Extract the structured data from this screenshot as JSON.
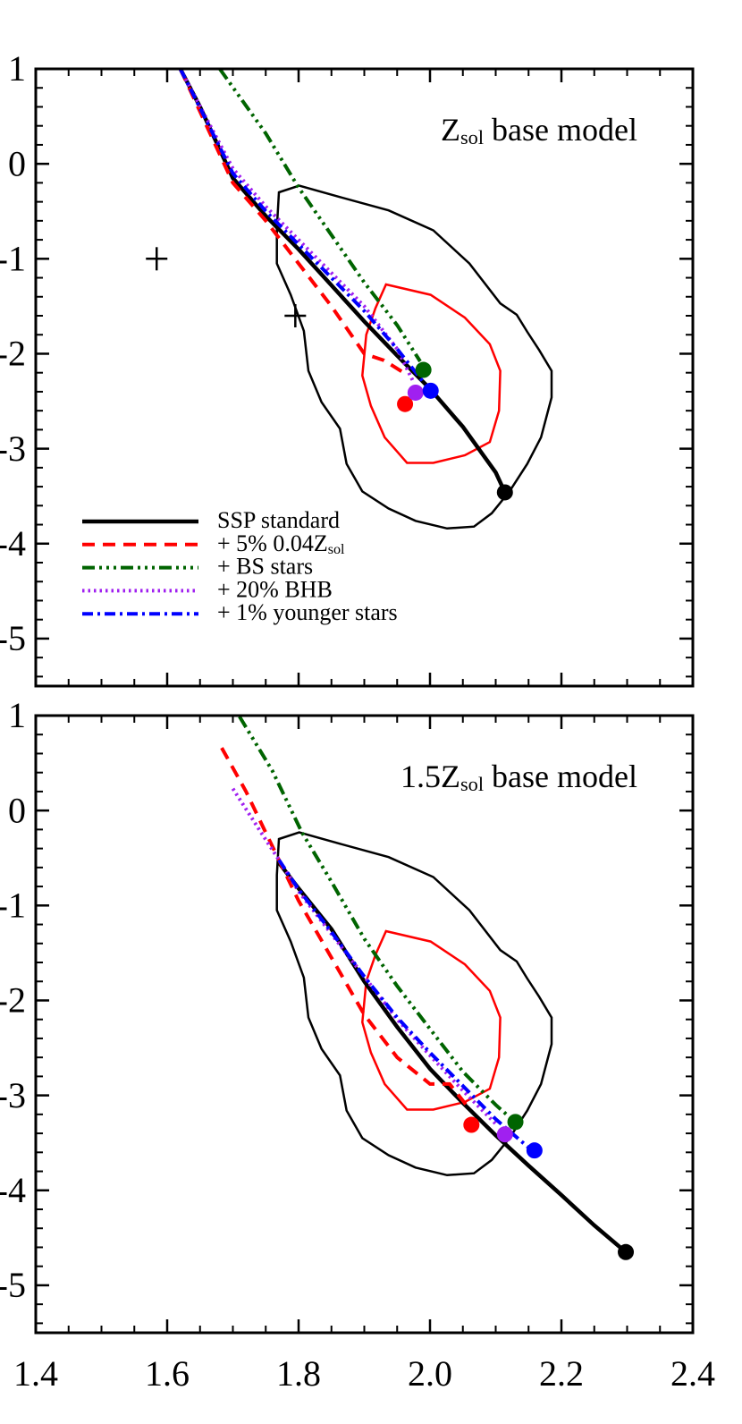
{
  "chart_data": [
    {
      "type": "line",
      "title": [
        {
          "text": "Z"
        },
        {
          "text": "sol",
          "sub": true
        },
        {
          "text": " base model"
        }
      ],
      "xlim": [
        1.4,
        2.4
      ],
      "ylim": [
        -5.5,
        1
      ],
      "xticks": [
        1.4,
        1.6,
        1.8,
        {
          "value": 2,
          "label": "2.0"
        },
        2.2,
        2.4
      ],
      "yticks": [
        -5,
        -4,
        -3,
        -2,
        -1,
        0,
        1
      ],
      "xlabels": false,
      "xminor": 4,
      "yminor": 5,
      "legend": "lower left",
      "contours": [
        {
          "color": "#000000",
          "x": [
            1.77,
            1.801,
            1.863,
            1.937,
            2.005,
            2.06,
            2.107,
            2.132,
            2.148,
            2.166,
            2.185,
            2.185,
            2.169,
            2.148,
            2.121,
            2.094,
            2.067,
            2.026,
            1.978,
            1.937,
            1.897,
            1.873,
            1.863,
            1.835,
            1.815,
            1.808,
            1.788,
            1.767,
            1.767
          ],
          "y": [
            -0.3,
            -0.23,
            -0.35,
            -0.49,
            -0.7,
            -1.05,
            -1.47,
            -1.59,
            -1.77,
            -1.96,
            -2.18,
            -2.46,
            -2.88,
            -3.16,
            -3.45,
            -3.68,
            -3.82,
            -3.84,
            -3.76,
            -3.63,
            -3.45,
            -3.16,
            -2.79,
            -2.51,
            -2.18,
            -1.76,
            -1.38,
            -1.05,
            -0.68
          ]
        },
        {
          "color": "#ff0000",
          "x": [
            1.933,
            2.001,
            2.053,
            2.091,
            2.107,
            2.105,
            2.091,
            2.053,
            2.005,
            1.965,
            1.931,
            1.91,
            1.897,
            1.903,
            1.917
          ],
          "y": [
            -1.27,
            -1.38,
            -1.62,
            -1.9,
            -2.18,
            -2.6,
            -2.93,
            -3.07,
            -3.15,
            -3.15,
            -2.88,
            -2.55,
            -2.23,
            -1.8,
            -1.52
          ]
        }
      ],
      "crosses": {
        "x": [
          1.584,
          1.795
        ],
        "y": [
          -1.0,
          -1.6
        ]
      },
      "series": [
        {
          "name": [
            {
              "text": "SSP standard"
            }
          ],
          "color": "#000000",
          "style": "solid",
          "x": [
            1.62,
            1.65,
            1.7,
            1.75,
            1.8,
            1.85,
            1.9,
            1.95,
            2.0,
            2.05,
            2.1,
            2.114
          ],
          "values": [
            1.0,
            0.6,
            -0.15,
            -0.55,
            -0.9,
            -1.28,
            -1.66,
            -2.02,
            -2.37,
            -2.77,
            -3.25,
            -3.46
          ],
          "marker_x": 2.114,
          "marker_y": -3.46
        },
        {
          "name": [
            {
              "text": "+ 5% 0.04Z"
            },
            {
              "text": "sol",
              "sub": true
            }
          ],
          "color": "#ff0000",
          "style": "dashed",
          "x": [
            1.62,
            1.7,
            1.75,
            1.8,
            1.85,
            1.9,
            1.93,
            1.96
          ],
          "values": [
            1.0,
            -0.2,
            -0.6,
            -1.05,
            -1.5,
            -2.0,
            -2.07,
            -2.2
          ],
          "marker_x": 1.962,
          "marker_y": -2.53
        },
        {
          "name": [
            {
              "text": "+ BS stars"
            }
          ],
          "color": "#006400",
          "style": "dashdotdotdot",
          "x": [
            1.68,
            1.75,
            1.8,
            1.85,
            1.9,
            1.95,
            1.985
          ],
          "values": [
            1.0,
            0.32,
            -0.25,
            -0.75,
            -1.25,
            -1.7,
            -2.08
          ],
          "marker_x": 1.99,
          "marker_y": -2.17
        },
        {
          "name": [
            {
              "text": "+ 20% BHB"
            }
          ],
          "color": "#a020f0",
          "style": "dotted",
          "x": [
            1.62,
            1.7,
            1.75,
            1.8,
            1.85,
            1.9,
            1.95,
            1.975
          ],
          "values": [
            1.0,
            -0.05,
            -0.45,
            -0.8,
            -1.15,
            -1.5,
            -1.95,
            -2.3
          ],
          "marker_x": 1.978,
          "marker_y": -2.41
        },
        {
          "name": [
            {
              "text": "+ 1% younger stars"
            }
          ],
          "color": "#0000ff",
          "style": "dashdot",
          "x": [
            1.62,
            1.7,
            1.75,
            1.8,
            1.85,
            1.9,
            1.95,
            1.99
          ],
          "values": [
            1.0,
            -0.1,
            -0.5,
            -0.85,
            -1.2,
            -1.55,
            -1.95,
            -2.3
          ],
          "marker_x": 2.001,
          "marker_y": -2.39
        }
      ]
    },
    {
      "type": "line",
      "title": [
        {
          "text": "1.5Z"
        },
        {
          "text": "sol",
          "sub": true
        },
        {
          "text": " base model"
        }
      ],
      "xlim": [
        1.4,
        2.4
      ],
      "ylim": [
        -5.5,
        1
      ],
      "xticks": [
        1.4,
        1.6,
        1.8,
        {
          "value": 2,
          "label": "2.0"
        },
        2.2,
        2.4
      ],
      "yticks": [
        -5,
        -4,
        -3,
        -2,
        -1,
        0,
        1
      ],
      "xminor": 4,
      "yminor": 5,
      "contours": [
        {
          "color": "#000000",
          "x": [
            1.77,
            1.801,
            1.863,
            1.937,
            2.005,
            2.06,
            2.107,
            2.132,
            2.148,
            2.166,
            2.185,
            2.185,
            2.169,
            2.148,
            2.121,
            2.094,
            2.067,
            2.026,
            1.978,
            1.937,
            1.897,
            1.873,
            1.863,
            1.835,
            1.815,
            1.808,
            1.788,
            1.767,
            1.767
          ],
          "y": [
            -0.3,
            -0.23,
            -0.35,
            -0.49,
            -0.7,
            -1.05,
            -1.47,
            -1.59,
            -1.77,
            -1.96,
            -2.18,
            -2.46,
            -2.88,
            -3.16,
            -3.45,
            -3.68,
            -3.82,
            -3.84,
            -3.76,
            -3.63,
            -3.45,
            -3.16,
            -2.79,
            -2.51,
            -2.18,
            -1.76,
            -1.38,
            -1.05,
            -0.68
          ]
        },
        {
          "color": "#ff0000",
          "x": [
            1.933,
            2.001,
            2.053,
            2.091,
            2.107,
            2.105,
            2.091,
            2.053,
            2.005,
            1.965,
            1.931,
            1.91,
            1.897,
            1.903,
            1.917
          ],
          "y": [
            -1.27,
            -1.38,
            -1.62,
            -1.9,
            -2.18,
            -2.6,
            -2.93,
            -3.07,
            -3.15,
            -3.15,
            -2.88,
            -2.55,
            -2.23,
            -1.8,
            -1.52
          ]
        }
      ],
      "series": [
        {
          "color": "#000000",
          "style": "solid",
          "x": [
            1.77,
            1.8,
            1.85,
            1.9,
            1.95,
            2.0,
            2.05,
            2.1,
            2.15,
            2.2,
            2.25,
            2.298
          ],
          "values": [
            -0.55,
            -0.82,
            -1.25,
            -1.8,
            -2.28,
            -2.72,
            -3.08,
            -3.42,
            -3.74,
            -4.05,
            -4.37,
            -4.65
          ],
          "marker_x": 2.298,
          "marker_y": -4.65
        },
        {
          "color": "#ff0000",
          "style": "dashed",
          "x": [
            1.683,
            1.72,
            1.77,
            1.8,
            1.85,
            1.9,
            1.95,
            2.0,
            2.03,
            2.055
          ],
          "values": [
            0.66,
            0.2,
            -0.52,
            -0.95,
            -1.55,
            -2.15,
            -2.6,
            -2.88,
            -2.88,
            -3.1
          ],
          "marker_x": 2.063,
          "marker_y": -3.31
        },
        {
          "color": "#006400",
          "style": "dashdotdotdot",
          "x": [
            1.71,
            1.76,
            1.805,
            1.85,
            1.9,
            1.95,
            2.0,
            2.05,
            2.1,
            2.131
          ],
          "values": [
            0.99,
            0.42,
            -0.23,
            -0.75,
            -1.35,
            -1.85,
            -2.3,
            -2.75,
            -3.1,
            -3.29
          ],
          "marker_x": 2.13,
          "marker_y": -3.28
        },
        {
          "color": "#a020f0",
          "style": "dotted",
          "x": [
            1.7,
            1.74,
            1.77,
            1.8,
            1.85,
            1.9,
            1.95,
            2.0,
            2.05,
            2.1
          ],
          "values": [
            0.23,
            -0.2,
            -0.52,
            -0.85,
            -1.3,
            -1.75,
            -2.2,
            -2.58,
            -2.95,
            -3.3
          ],
          "marker_x": 2.114,
          "marker_y": -3.41
        },
        {
          "color": "#0000ff",
          "style": "dashdot",
          "x": [
            1.77,
            1.8,
            1.85,
            1.9,
            1.95,
            2.0,
            2.05,
            2.1,
            2.15
          ],
          "values": [
            -0.52,
            -0.83,
            -1.28,
            -1.75,
            -2.18,
            -2.55,
            -2.9,
            -3.25,
            -3.55
          ],
          "marker_x": 2.159,
          "marker_y": -3.58
        }
      ]
    }
  ]
}
